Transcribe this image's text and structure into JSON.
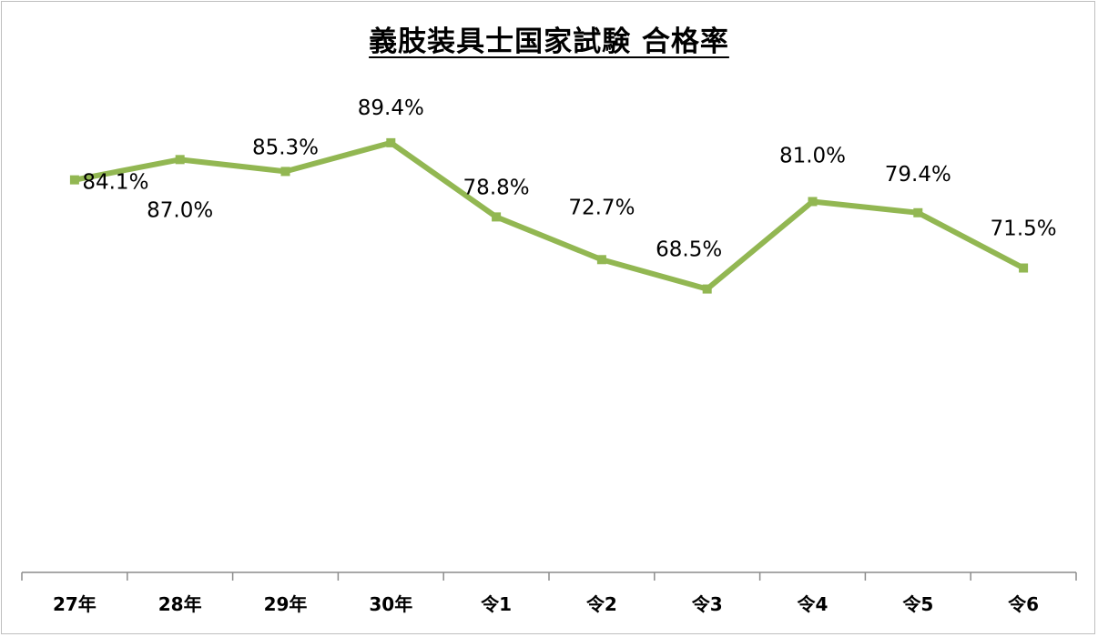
{
  "chart_data": {
    "type": "line",
    "title": "義肢装具士国家試験 合格率",
    "xlabel": "",
    "ylabel": "",
    "categories": [
      "27年",
      "28年",
      "29年",
      "30年",
      "令1",
      "令2",
      "令3",
      "令4",
      "令5",
      "令6"
    ],
    "series": [
      {
        "values": [
          84.1,
          87.0,
          85.3,
          89.4,
          78.8,
          72.7,
          68.5,
          81.0,
          79.4,
          71.5
        ],
        "labels": [
          "84.1%",
          "87.0%",
          "85.3%",
          "89.4%",
          "78.8%",
          "72.7%",
          "68.5%",
          "81.0%",
          "79.4%",
          "71.5%"
        ],
        "color": "#92b752"
      }
    ],
    "ylim": [
      28,
      102
    ],
    "grid": false,
    "legend": "none",
    "data_labels": true
  }
}
